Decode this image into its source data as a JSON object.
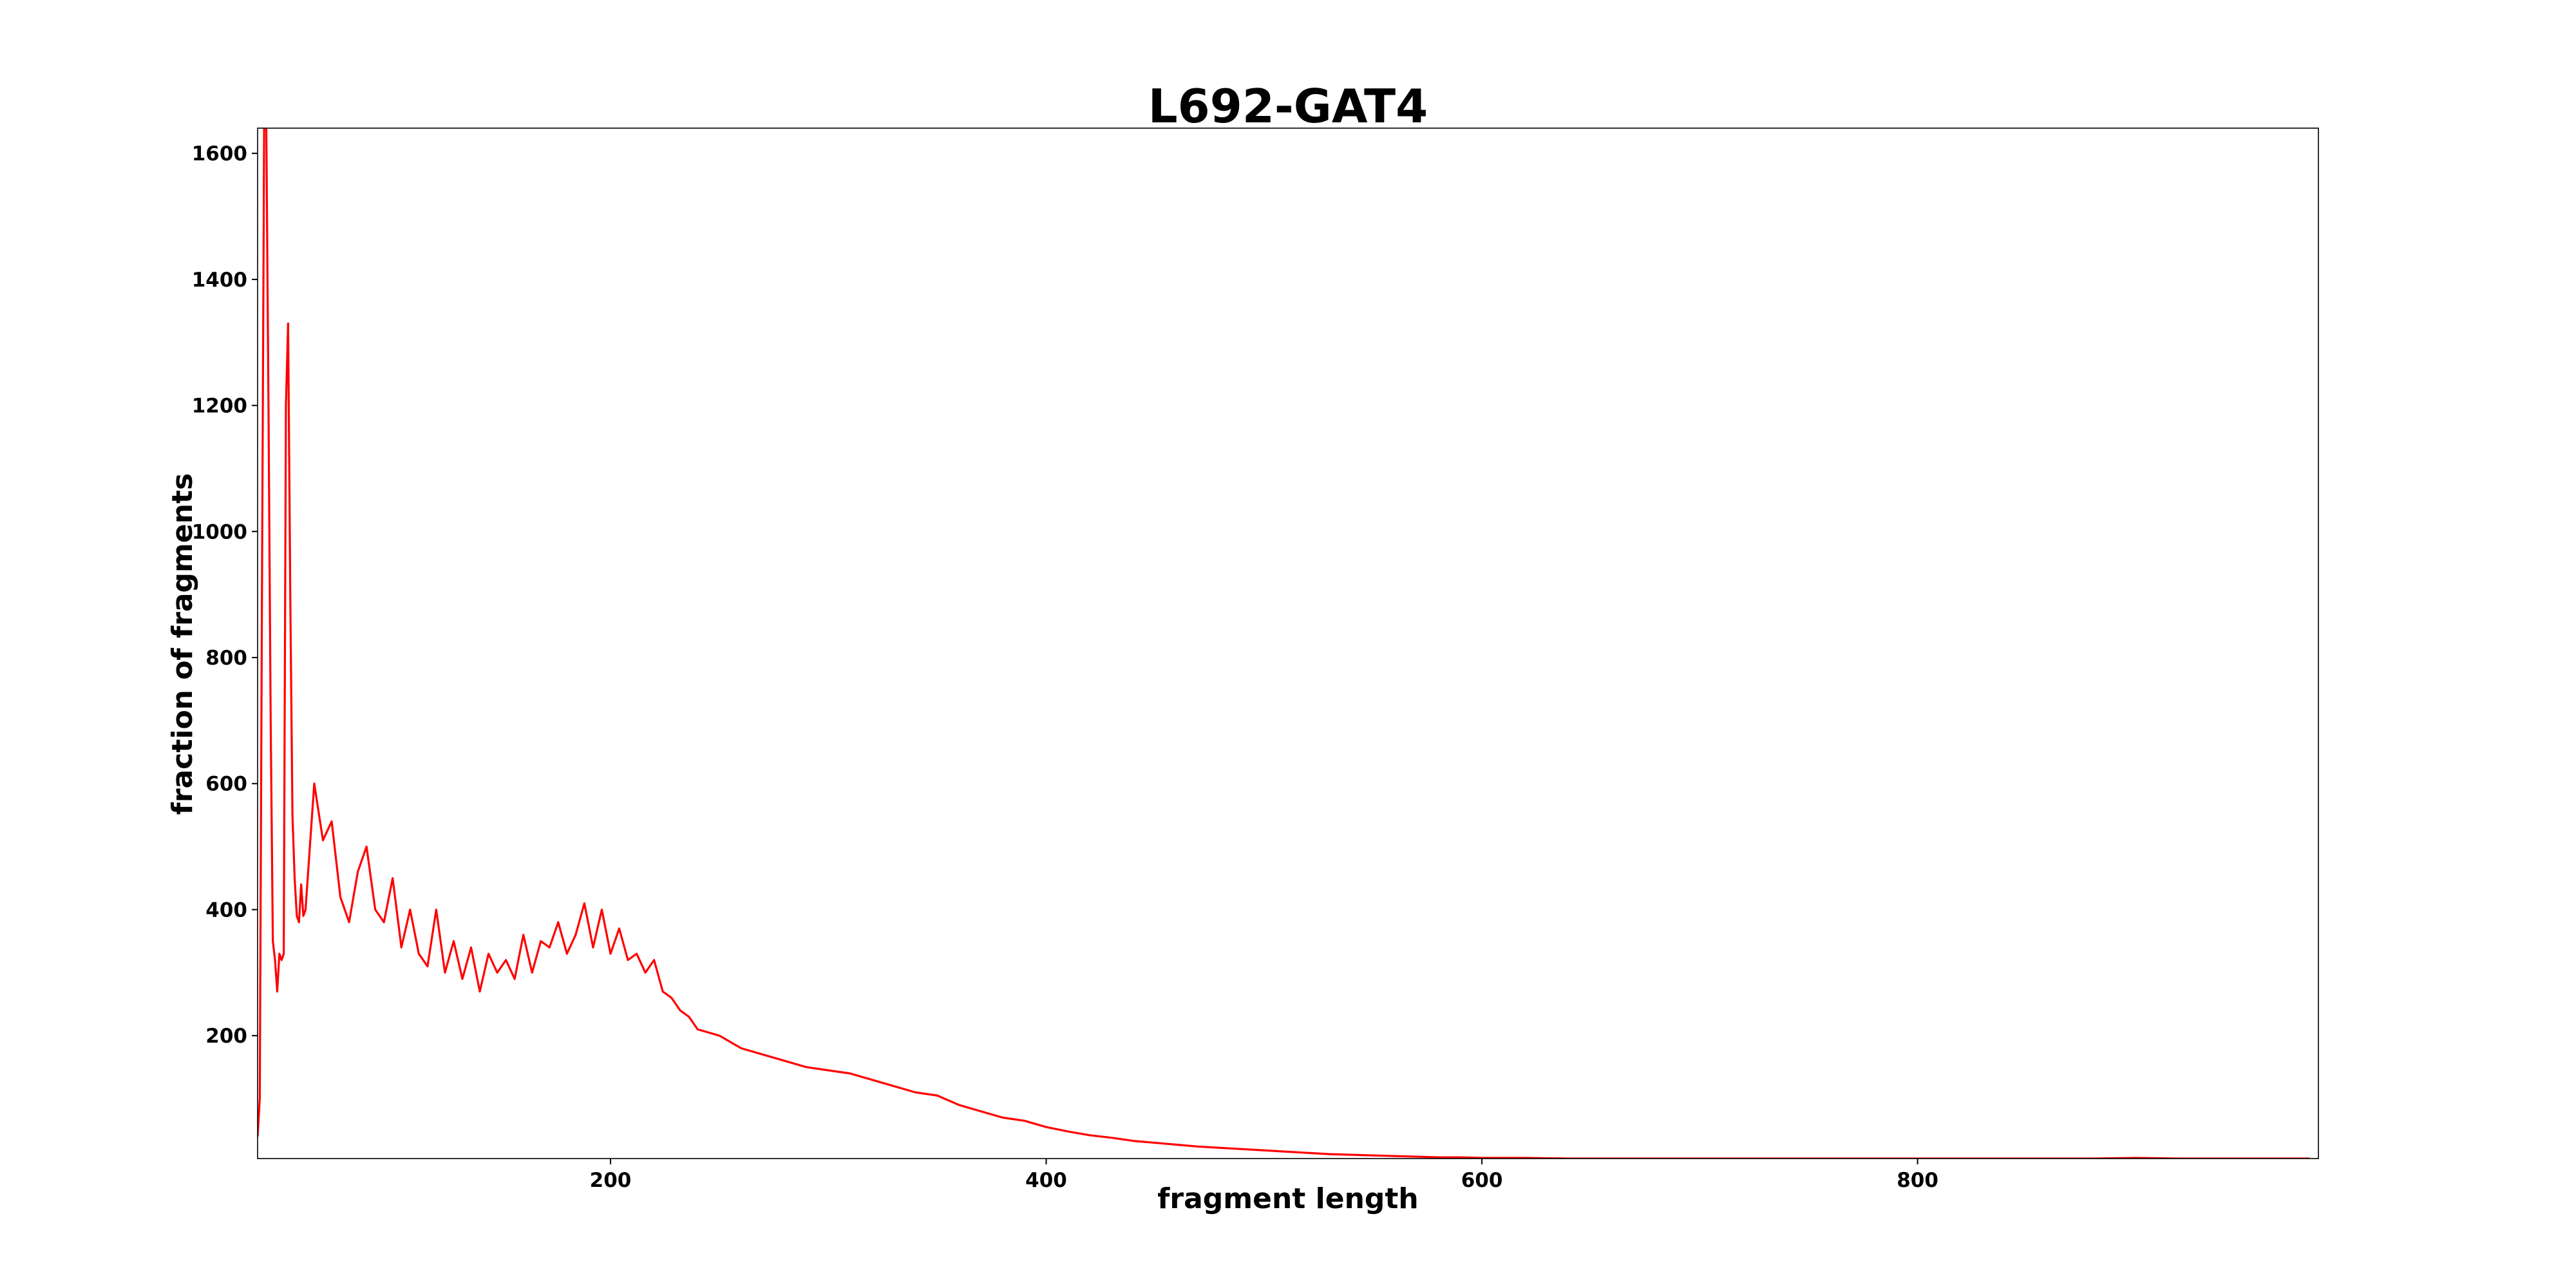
{
  "chart_data": {
    "type": "line",
    "title": "L692-GAT4",
    "xlabel": "fragment length",
    "ylabel": "fraction of fragments",
    "color": "#ff0000",
    "x": [
      38,
      39,
      40,
      41,
      42,
      43,
      44,
      45,
      46,
      47,
      48,
      49,
      50,
      51,
      52,
      53,
      54,
      55,
      56,
      57,
      58,
      59,
      60,
      64,
      68,
      72,
      76,
      80,
      84,
      88,
      92,
      96,
      100,
      104,
      108,
      112,
      116,
      120,
      124,
      128,
      132,
      136,
      140,
      144,
      148,
      152,
      156,
      160,
      164,
      168,
      172,
      176,
      180,
      184,
      188,
      192,
      196,
      200,
      204,
      208,
      212,
      216,
      220,
      224,
      228,
      232,
      236,
      240,
      250,
      260,
      270,
      280,
      290,
      300,
      310,
      320,
      330,
      340,
      350,
      360,
      370,
      380,
      390,
      400,
      410,
      420,
      430,
      440,
      450,
      460,
      470,
      480,
      490,
      500,
      510,
      520,
      530,
      540,
      550,
      560,
      570,
      580,
      590,
      600,
      620,
      640,
      660,
      680,
      700,
      720,
      740,
      760,
      780,
      800,
      820,
      840,
      860,
      880,
      900,
      920,
      940,
      960,
      980
    ],
    "values": [
      40,
      100,
      900,
      1640,
      1640,
      1200,
      700,
      350,
      320,
      270,
      330,
      320,
      330,
      1200,
      1330,
      900,
      550,
      450,
      390,
      380,
      440,
      390,
      400,
      600,
      510,
      540,
      420,
      380,
      460,
      500,
      400,
      380,
      450,
      340,
      400,
      330,
      310,
      400,
      300,
      350,
      290,
      340,
      270,
      330,
      300,
      320,
      290,
      360,
      300,
      350,
      340,
      380,
      330,
      360,
      410,
      340,
      400,
      330,
      370,
      320,
      330,
      300,
      320,
      270,
      260,
      240,
      230,
      210,
      200,
      180,
      170,
      160,
      150,
      145,
      140,
      130,
      120,
      110,
      105,
      90,
      80,
      70,
      65,
      55,
      48,
      42,
      38,
      33,
      30,
      27,
      24,
      22,
      20,
      18,
      16,
      14,
      12,
      11,
      10,
      9,
      8,
      7,
      7,
      6,
      6,
      5,
      5,
      5,
      5,
      5,
      5,
      5,
      5,
      5,
      5,
      5,
      5,
      5,
      6,
      5,
      5,
      5,
      5
    ],
    "xlim": [
      38,
      984
    ],
    "ylim": [
      5,
      1640
    ],
    "xticks": [
      200,
      400,
      600,
      800
    ],
    "yticks": [
      200,
      400,
      600,
      800,
      1000,
      1200,
      1400,
      1600
    ]
  }
}
